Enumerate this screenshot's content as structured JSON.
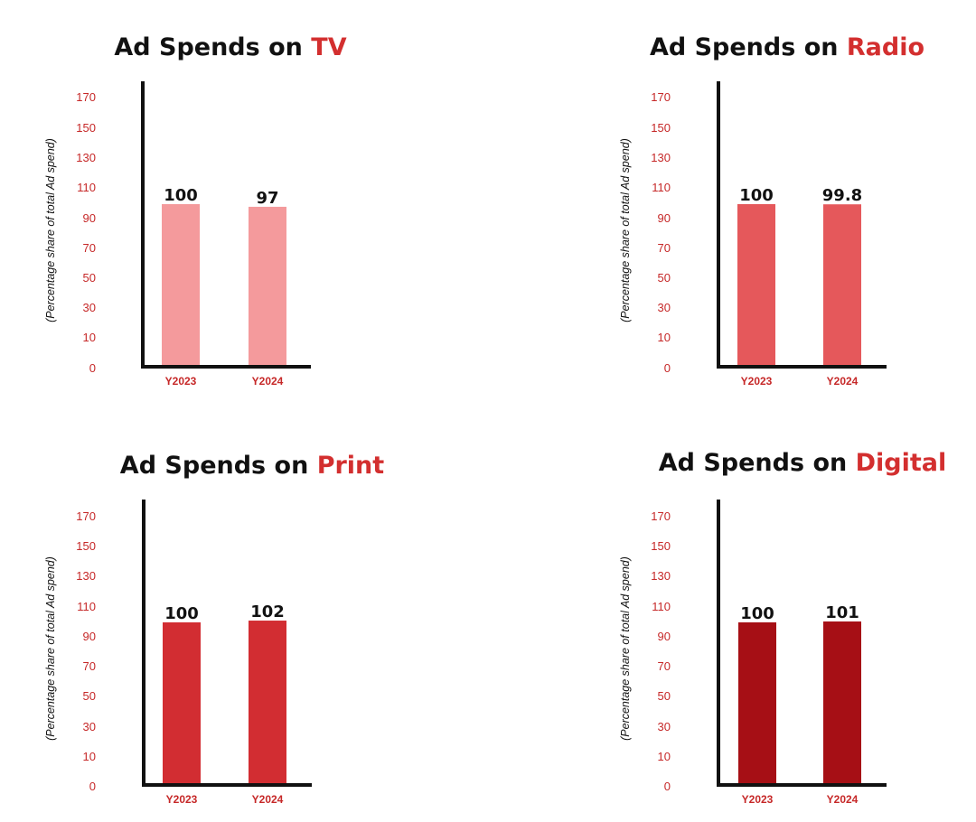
{
  "chart_data": [
    {
      "type": "bar",
      "title": "Ad Spends on TV",
      "title_main": "Ad Spends on ",
      "title_accent": "TV",
      "ylabel": "(Percentage share of total Ad spend)",
      "xlabel": "",
      "categories": [
        "Y2023",
        "Y2024"
      ],
      "values": [
        100,
        97
      ],
      "data_labels": [
        "100",
        "97"
      ],
      "yticks": [
        0,
        10,
        30,
        50,
        70,
        90,
        110,
        130,
        150,
        170
      ],
      "ylim": [
        0,
        180
      ],
      "bar_color": "#f49a9c",
      "grid": false,
      "legend": "none"
    },
    {
      "type": "bar",
      "title": "Ad Spends on Radio",
      "title_main": "Ad Spends on ",
      "title_accent": "Radio",
      "ylabel": "(Percentage share of total Ad spend)",
      "xlabel": "",
      "categories": [
        "Y2023",
        "Y2024"
      ],
      "values": [
        100,
        99.8
      ],
      "data_labels": [
        "100",
        "99.8"
      ],
      "yticks": [
        0,
        10,
        30,
        50,
        70,
        90,
        110,
        130,
        150,
        170
      ],
      "ylim": [
        0,
        180
      ],
      "bar_color": "#e5585b",
      "grid": false,
      "legend": "none"
    },
    {
      "type": "bar",
      "title": "Ad Spends on Print",
      "title_main": "Ad Spends on ",
      "title_accent": "Print",
      "ylabel": "(Percentage share of total Ad spend)",
      "xlabel": "",
      "categories": [
        "Y2023",
        "Y2024"
      ],
      "values": [
        100,
        102
      ],
      "data_labels": [
        "100",
        "102"
      ],
      "yticks": [
        0,
        10,
        30,
        50,
        70,
        90,
        110,
        130,
        150,
        170
      ],
      "ylim": [
        0,
        180
      ],
      "bar_color": "#d22d32",
      "grid": false,
      "legend": "none"
    },
    {
      "type": "bar",
      "title": "Ad Spends on Digital",
      "title_main": "Ad Spends on ",
      "title_accent": "Digital",
      "ylabel": "(Percentage share of total Ad spend)",
      "xlabel": "",
      "categories": [
        "Y2023",
        "Y2024"
      ],
      "values": [
        100,
        101
      ],
      "data_labels": [
        "100",
        "101"
      ],
      "yticks": [
        0,
        10,
        30,
        50,
        70,
        90,
        110,
        130,
        150,
        170
      ],
      "ylim": [
        0,
        180
      ],
      "bar_color": "#a60f15",
      "grid": false,
      "legend": "none"
    }
  ],
  "colors": {
    "title_text": "#111111",
    "title_accent": "#d32f2f",
    "tick_text": "#c62828",
    "axis": "#111111"
  }
}
